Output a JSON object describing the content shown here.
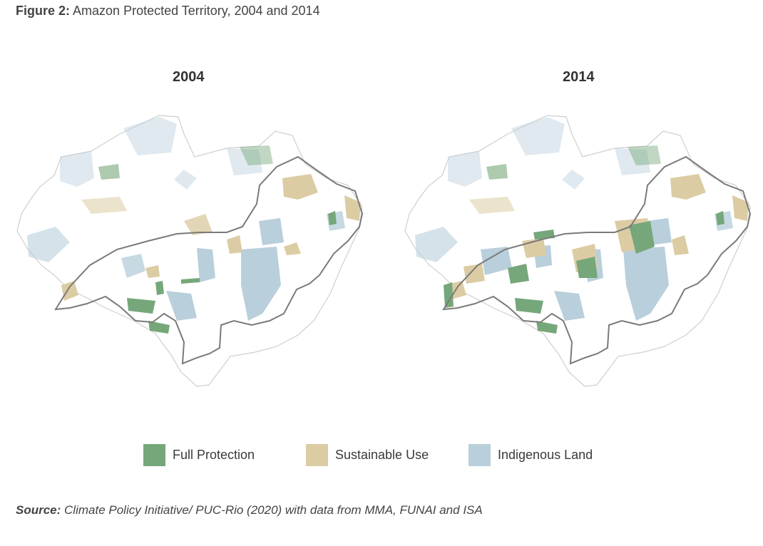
{
  "figure": {
    "label": "Figure 2:",
    "title": "Amazon Protected Territory, 2004 and 2014"
  },
  "maps": [
    {
      "year": "2004"
    },
    {
      "year": "2014"
    }
  ],
  "legend": [
    {
      "label": "Full Protection",
      "color": "#76a77a"
    },
    {
      "label": "Sustainable Use",
      "color": "#dccca4"
    },
    {
      "label": "Indigenous Land",
      "color": "#b9cfdb"
    }
  ],
  "source": {
    "label": "Source:",
    "text": "Climate Policy Initiative/ PUC-Rio (2020) with data from MMA, FUNAI and ISA"
  },
  "colors": {
    "full_protection": "#76a77a",
    "sustainable_use": "#dccca4",
    "indigenous_land": "#b9cfdb",
    "boundary": "#7a7a7a",
    "region_outline": "#cfcfcf"
  }
}
